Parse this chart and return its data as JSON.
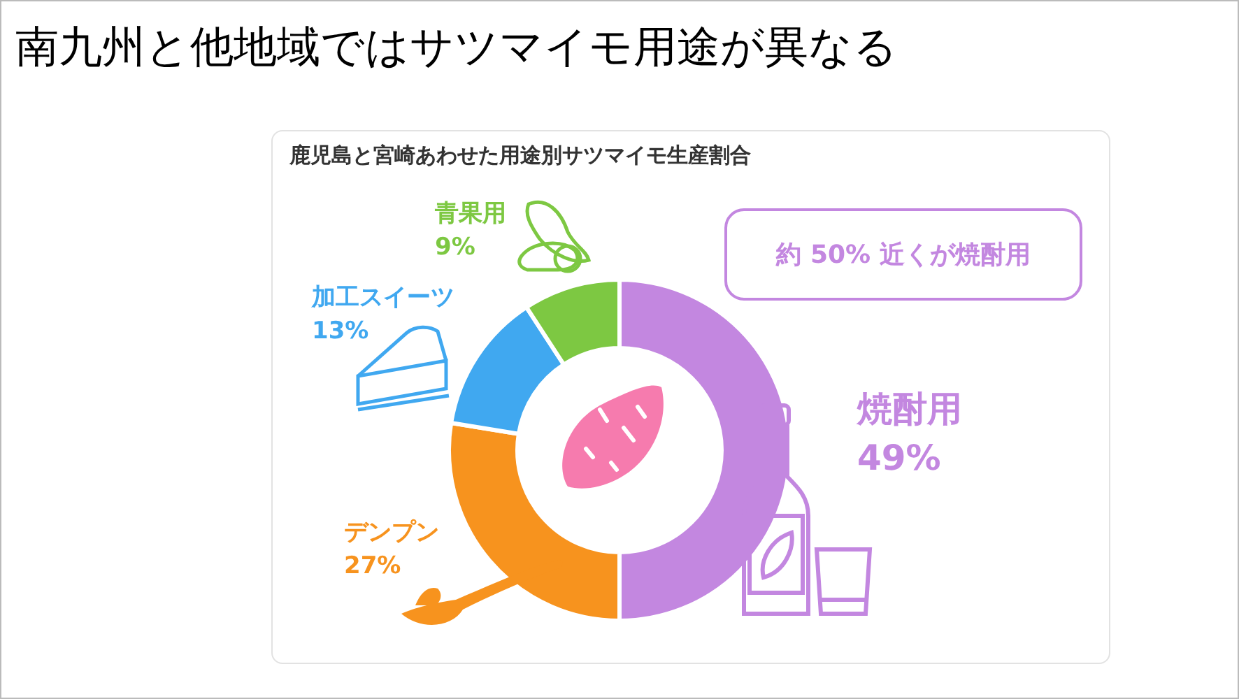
{
  "chart_data": {
    "type": "donut",
    "title": "南九州と他地域ではサツマイモ用途が異なる",
    "subtitle": "鹿児島と宮崎あわせた用途別サツマイモ生産割合",
    "categories": [
      "焼酎用",
      "デンプン",
      "加工スイーツ",
      "青果用"
    ],
    "values": [
      49,
      27,
      13,
      9
    ],
    "colors": [
      "#c387e0",
      "#f7931e",
      "#40a8f0",
      "#7dc842"
    ],
    "value_labels": [
      "49%",
      "27%",
      "13%",
      "9%"
    ],
    "annotations": [
      "約 50% 近くが焼酎用"
    ]
  }
}
